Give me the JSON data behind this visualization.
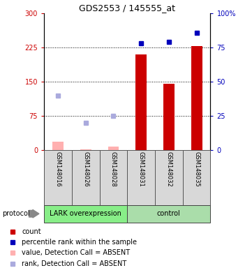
{
  "title": "GDS2553 / 145555_at",
  "samples": [
    "GSM148016",
    "GSM148026",
    "GSM148028",
    "GSM148031",
    "GSM148032",
    "GSM148035"
  ],
  "ylim_left": [
    0,
    300
  ],
  "ylim_right": [
    0,
    100
  ],
  "yticks_left": [
    0,
    75,
    150,
    225,
    300
  ],
  "yticks_right": [
    0,
    25,
    50,
    75,
    100
  ],
  "ytick_labels_left": [
    "0",
    "75",
    "150",
    "225",
    "300"
  ],
  "ytick_labels_right": [
    "0",
    "25",
    "50",
    "75",
    "100%"
  ],
  "bars_present": {
    "GSM148031": 210,
    "GSM148032": 145,
    "GSM148035": 228
  },
  "bars_absent": {
    "GSM148016": 18,
    "GSM148026": 2,
    "GSM148028": 8
  },
  "rank_present": {
    "GSM148031": 78,
    "GSM148032": 79,
    "GSM148035": 86
  },
  "rank_absent": {
    "GSM148016": 40,
    "GSM148026": 20,
    "GSM148028": 25
  },
  "bar_color_present": "#cc0000",
  "bar_color_absent": "#ffb0b0",
  "rank_color_present": "#0000bb",
  "rank_color_absent": "#aaaadd",
  "group1_label": "LARK overexpression",
  "group2_label": "control",
  "group1_color": "#88ee88",
  "group2_color": "#aaddaa",
  "protocol_label": "protocol",
  "legend_items": [
    {
      "label": "count",
      "color": "#cc0000"
    },
    {
      "label": "percentile rank within the sample",
      "color": "#0000bb"
    },
    {
      "label": "value, Detection Call = ABSENT",
      "color": "#ffb0b0"
    },
    {
      "label": "rank, Detection Call = ABSENT",
      "color": "#aaaadd"
    }
  ],
  "title_fontsize": 9,
  "tick_fontsize": 7,
  "label_fontsize": 7,
  "sample_fontsize": 6
}
